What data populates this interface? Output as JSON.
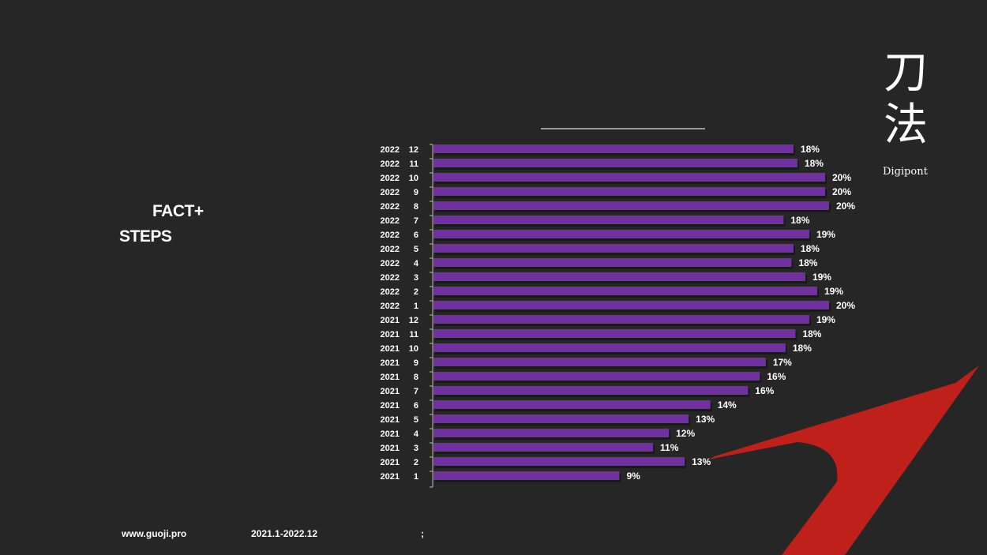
{
  "slide": {
    "title_line1": "FACT+",
    "title_line2": "STEPS",
    "footer_url": "www.guoji.pro",
    "footer_range": "2021.1-2022.12",
    "footer_semicolon": ";",
    "logo_glyphs": "刀法",
    "logo_text": "Digipont",
    "accent_colors": {
      "bar": "#7030a0",
      "swoosh": "#c0201a",
      "background": "#262626"
    }
  },
  "chart_data": {
    "type": "bar",
    "orientation": "horizontal",
    "title": "",
    "xlabel": "",
    "ylabel": "",
    "xlim": [
      0,
      0.22
    ],
    "grid": false,
    "legend": "none",
    "categories": [
      {
        "year": "2022",
        "month": "12"
      },
      {
        "year": "2022",
        "month": "11"
      },
      {
        "year": "2022",
        "month": "10"
      },
      {
        "year": "2022",
        "month": "9"
      },
      {
        "year": "2022",
        "month": "8"
      },
      {
        "year": "2022",
        "month": "7"
      },
      {
        "year": "2022",
        "month": "6"
      },
      {
        "year": "2022",
        "month": "5"
      },
      {
        "year": "2022",
        "month": "4"
      },
      {
        "year": "2022",
        "month": "3"
      },
      {
        "year": "2022",
        "month": "2"
      },
      {
        "year": "2022",
        "month": "1"
      },
      {
        "year": "2021",
        "month": "12"
      },
      {
        "year": "2021",
        "month": "11"
      },
      {
        "year": "2021",
        "month": "10"
      },
      {
        "year": "2021",
        "month": "9"
      },
      {
        "year": "2021",
        "month": "8"
      },
      {
        "year": "2021",
        "month": "7"
      },
      {
        "year": "2021",
        "month": "6"
      },
      {
        "year": "2021",
        "month": "5"
      },
      {
        "year": "2021",
        "month": "4"
      },
      {
        "year": "2021",
        "month": "3"
      },
      {
        "year": "2021",
        "month": "2"
      },
      {
        "year": "2021",
        "month": "1"
      }
    ],
    "values": [
      0.182,
      0.184,
      0.198,
      0.198,
      0.2,
      0.177,
      0.19,
      0.182,
      0.181,
      0.188,
      0.194,
      0.2,
      0.19,
      0.183,
      0.178,
      0.168,
      0.165,
      0.159,
      0.14,
      0.129,
      0.119,
      0.111,
      0.127,
      0.094
    ],
    "labels": [
      "18%",
      "18%",
      "20%",
      "20%",
      "20%",
      "18%",
      "19%",
      "18%",
      "18%",
      "19%",
      "19%",
      "20%",
      "19%",
      "18%",
      "18%",
      "17%",
      "16%",
      "16%",
      "14%",
      "13%",
      "12%",
      "11%",
      "13%",
      "9%"
    ]
  }
}
